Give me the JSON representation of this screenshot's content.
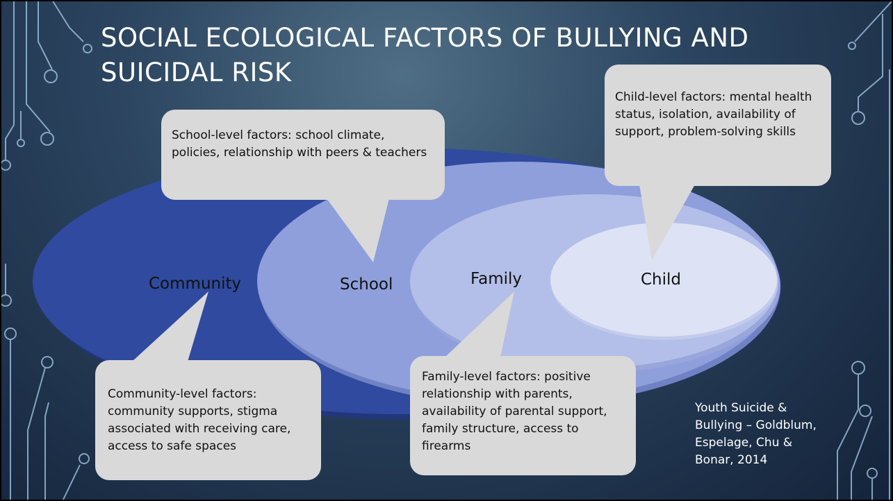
{
  "title": "SOCIAL ECOLOGICAL FACTORS OF BULLYING AND SUICIDAL RISK",
  "circles": [
    {
      "label": "Community"
    },
    {
      "label": "School"
    },
    {
      "label": "Family"
    },
    {
      "label": "Child"
    }
  ],
  "callouts": [
    {
      "text": "School-level factors: school climate, policies, relationship with peers & teachers"
    },
    {
      "text": "Child-level factors: mental health status, isolation, availability of support, problem-solving skills"
    },
    {
      "text": "Community-level factors: community supports, stigma associated with receiving care, access to safe spaces"
    },
    {
      "text": "Family-level factors: positive relationship with parents, availability of parental support, family structure, access to firearms"
    }
  ],
  "citation": "Youth Suicide & Bullying – Goldblum, Espelage, Chu & Bonar, 2014"
}
